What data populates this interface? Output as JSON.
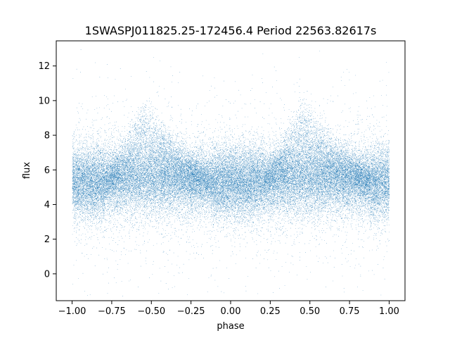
{
  "chart_data": {
    "type": "scatter",
    "title": "1SWASPJ011825.25-172456.4 Period 22563.82617s",
    "xlabel": "phase",
    "ylabel": "flux",
    "xlim": [
      -1.1,
      1.1
    ],
    "ylim": [
      -1.55,
      13.45
    ],
    "x_ticks": [
      -1.0,
      -0.75,
      -0.5,
      -0.25,
      0.0,
      0.25,
      0.5,
      0.75,
      1.0
    ],
    "x_tick_labels": [
      "−1.00",
      "−0.75",
      "−0.50",
      "−0.25",
      "0.00",
      "0.25",
      "0.50",
      "0.75",
      "1.00"
    ],
    "y_ticks": [
      0,
      2,
      4,
      6,
      8,
      10,
      12
    ],
    "y_tick_labels": [
      "0",
      "2",
      "4",
      "6",
      "8",
      "10",
      "12"
    ],
    "grid": false,
    "marker_color": "#1f77b4",
    "series": [
      {
        "x_range": [
          -1.0,
          1.0
        ],
        "baseline_flux": 5.3,
        "baseline_scatter": 1.0,
        "hump_peak_phase": [
          -0.55,
          0.45
        ],
        "hump_peak_flux": 9.5,
        "hump_end_phase": [
          -0.1,
          0.9
        ],
        "point_count": 50000
      }
    ]
  }
}
